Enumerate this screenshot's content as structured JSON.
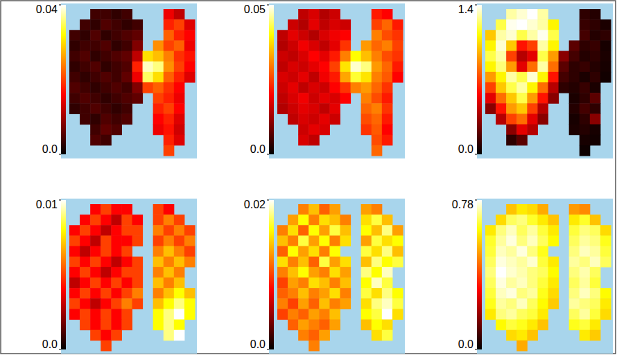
{
  "chart_data": [
    {
      "type": "heatmap",
      "tick_labels": false,
      "zlim": [
        0,
        0.04
      ],
      "zticks": [
        {
          "value": 0,
          "label": "0.0"
        },
        0.04
      ],
      "cells": [
        [
          null,
          null,
          0.004,
          0.004,
          0.003,
          0.004,
          null,
          null,
          null,
          0.015,
          0.012,
          null
        ],
        [
          null,
          0.004,
          0.003,
          0.005,
          0.004,
          0.003,
          0.004,
          null,
          null,
          0.018,
          0.02,
          0.014
        ],
        [
          0.004,
          0.003,
          0.005,
          0.003,
          0.004,
          0.005,
          0.006,
          null,
          null,
          0.022,
          0.018,
          0.016
        ],
        [
          0.003,
          0.004,
          0.004,
          0.005,
          0.003,
          0.004,
          0.008,
          null,
          0.025,
          0.02,
          0.022,
          0.015
        ],
        [
          0.004,
          0.005,
          0.003,
          0.004,
          0.005,
          0.006,
          0.012,
          0.03,
          0.028,
          0.024,
          0.019,
          0.017
        ],
        [
          0.003,
          0.004,
          0.005,
          0.003,
          0.004,
          0.005,
          0.018,
          0.038,
          0.036,
          0.025,
          0.02,
          0.016
        ],
        [
          0.004,
          0.003,
          0.004,
          0.005,
          0.004,
          0.006,
          0.015,
          0.035,
          0.03,
          0.022,
          0.018,
          0.014
        ],
        [
          0.005,
          0.004,
          0.003,
          0.004,
          0.005,
          0.004,
          0.008,
          0.02,
          0.022,
          0.019,
          0.016,
          null
        ],
        [
          0.004,
          0.005,
          0.004,
          0.003,
          0.004,
          0.005,
          0.006,
          null,
          0.02,
          0.018,
          0.015,
          null
        ],
        [
          0.003,
          0.004,
          0.005,
          0.004,
          0.003,
          0.004,
          null,
          null,
          0.018,
          0.02,
          0.016,
          null
        ],
        [
          null,
          0.004,
          0.003,
          0.005,
          0.004,
          0.005,
          null,
          null,
          0.016,
          0.018,
          0.014,
          null
        ],
        [
          null,
          null,
          0.004,
          0.006,
          0.005,
          null,
          null,
          null,
          0.015,
          0.017,
          0.013,
          null
        ],
        [
          null,
          null,
          0.005,
          0.004,
          null,
          null,
          null,
          null,
          null,
          0.018,
          0.014,
          null
        ],
        [
          null,
          null,
          null,
          null,
          null,
          null,
          null,
          null,
          null,
          0.02,
          null,
          null
        ]
      ]
    },
    {
      "type": "heatmap",
      "tick_labels": false,
      "zlim": [
        0,
        0.05
      ],
      "zticks": [
        {
          "value": 0,
          "label": "0.0"
        },
        0.05
      ],
      "cells": [
        [
          null,
          null,
          0.015,
          0.017,
          0.014,
          0.016,
          null,
          null,
          null,
          0.022,
          0.02,
          null
        ],
        [
          null,
          0.016,
          0.014,
          0.018,
          0.015,
          0.017,
          0.016,
          null,
          null,
          0.025,
          0.028,
          0.022
        ],
        [
          0.015,
          0.018,
          0.016,
          0.014,
          0.017,
          0.019,
          0.02,
          null,
          null,
          0.03,
          0.026,
          0.024
        ],
        [
          0.014,
          0.016,
          0.019,
          0.017,
          0.015,
          0.018,
          0.024,
          null,
          0.032,
          0.028,
          0.03,
          0.025
        ],
        [
          0.016,
          0.015,
          0.017,
          0.02,
          0.018,
          0.022,
          0.03,
          0.04,
          0.035,
          0.03,
          0.026,
          0.024
        ],
        [
          0.015,
          0.017,
          0.016,
          0.018,
          0.02,
          0.025,
          0.038,
          0.048,
          0.045,
          0.032,
          0.028,
          0.022
        ],
        [
          0.017,
          0.016,
          0.018,
          0.015,
          0.019,
          0.022,
          0.033,
          0.042,
          0.038,
          0.03,
          0.027,
          0.02
        ],
        [
          0.016,
          0.018,
          0.015,
          0.017,
          0.016,
          0.02,
          0.024,
          0.03,
          0.032,
          0.028,
          0.024,
          null
        ],
        [
          0.015,
          0.017,
          0.019,
          0.016,
          0.018,
          0.017,
          0.02,
          null,
          0.03,
          0.026,
          0.022,
          null
        ],
        [
          0.014,
          0.016,
          0.018,
          0.017,
          0.015,
          0.018,
          null,
          null,
          0.028,
          0.03,
          0.024,
          null
        ],
        [
          null,
          0.015,
          0.017,
          0.016,
          0.018,
          0.016,
          null,
          null,
          0.026,
          0.028,
          0.022,
          null
        ],
        [
          null,
          null,
          0.016,
          0.018,
          0.017,
          null,
          null,
          null,
          0.024,
          0.027,
          0.02,
          null
        ],
        [
          null,
          null,
          0.017,
          0.015,
          null,
          null,
          null,
          null,
          null,
          0.026,
          0.022,
          null
        ],
        [
          null,
          null,
          null,
          null,
          null,
          null,
          null,
          null,
          null,
          0.028,
          null,
          null
        ]
      ]
    },
    {
      "type": "heatmap",
      "tick_labels": false,
      "zlim": [
        0,
        1.4
      ],
      "zticks": [
        {
          "value": 0,
          "label": "0.0"
        },
        1.4
      ],
      "cells": [
        [
          null,
          null,
          1.3,
          1.35,
          1.4,
          1.3,
          null,
          null,
          null,
          0.1,
          0.08,
          null
        ],
        [
          null,
          1.2,
          1.38,
          1.4,
          1.35,
          1.3,
          1.1,
          null,
          null,
          0.12,
          0.1,
          0.06
        ],
        [
          1.0,
          1.3,
          1.35,
          1.2,
          1.3,
          1.38,
          1.2,
          null,
          null,
          0.15,
          0.08,
          0.1
        ],
        [
          1.1,
          1.35,
          1.0,
          0.6,
          0.7,
          1.3,
          1.1,
          null,
          0.2,
          0.1,
          0.12,
          0.05
        ],
        [
          1.2,
          1.3,
          0.7,
          0.4,
          0.5,
          1.2,
          0.9,
          0.3,
          0.15,
          0.08,
          0.1,
          0.06
        ],
        [
          1.1,
          1.25,
          0.9,
          0.5,
          0.8,
          1.3,
          0.8,
          0.2,
          0.1,
          0.12,
          0.08,
          0.05
        ],
        [
          0.9,
          1.1,
          1.3,
          1.2,
          1.35,
          1.1,
          0.6,
          0.15,
          0.1,
          0.06,
          0.1,
          0.04
        ],
        [
          0.7,
          1.0,
          1.2,
          1.3,
          1.1,
          0.8,
          0.4,
          0.1,
          0.08,
          0.12,
          0.06,
          null
        ],
        [
          0.5,
          0.8,
          1.0,
          1.2,
          0.9,
          0.6,
          0.3,
          null,
          0.06,
          0.1,
          0.2,
          null
        ],
        [
          0.3,
          0.6,
          0.9,
          1.0,
          0.7,
          0.4,
          null,
          null,
          0.08,
          0.15,
          0.1,
          null
        ],
        [
          null,
          0.4,
          0.7,
          0.8,
          0.5,
          0.3,
          null,
          null,
          0.05,
          0.1,
          0.3,
          null
        ],
        [
          null,
          null,
          0.3,
          0.5,
          0.4,
          null,
          null,
          null,
          0.06,
          0.08,
          0.05,
          null
        ],
        [
          null,
          null,
          0.1,
          0.2,
          null,
          null,
          null,
          null,
          null,
          0.05,
          0.04,
          null
        ],
        [
          null,
          null,
          null,
          null,
          null,
          null,
          null,
          null,
          null,
          0.03,
          null,
          null
        ]
      ]
    },
    {
      "type": "heatmap",
      "tick_labels": false,
      "zlim": [
        0,
        0.01
      ],
      "zticks": [
        {
          "value": 0,
          "label": "0.0"
        },
        0.01
      ],
      "cells": [
        [
          null,
          null,
          0.004,
          0.005,
          0.004,
          0.004,
          null,
          null,
          0.005,
          0.004,
          null,
          null
        ],
        [
          null,
          0.004,
          0.005,
          0.004,
          0.003,
          0.005,
          0.004,
          null,
          0.005,
          0.006,
          0.005,
          null
        ],
        [
          0.004,
          0.005,
          0.004,
          0.003,
          0.004,
          0.005,
          0.005,
          null,
          0.006,
          0.005,
          0.006,
          0.005
        ],
        [
          0.005,
          0.004,
          0.003,
          0.005,
          0.004,
          0.004,
          0.005,
          null,
          0.005,
          0.006,
          0.005,
          0.006
        ],
        [
          0.004,
          0.003,
          0.004,
          0.005,
          0.004,
          0.005,
          null,
          null,
          0.006,
          0.007,
          0.006,
          0.005
        ],
        [
          0.005,
          0.004,
          0.005,
          0.004,
          0.003,
          0.004,
          0.005,
          null,
          0.007,
          0.006,
          0.007,
          0.006
        ],
        [
          0.004,
          0.005,
          0.004,
          0.003,
          0.004,
          0.005,
          0.005,
          null,
          0.006,
          0.007,
          0.006,
          null
        ],
        [
          0.003,
          0.004,
          0.005,
          0.004,
          0.005,
          0.004,
          0.005,
          null,
          0.007,
          0.006,
          0.007,
          null
        ],
        [
          0.004,
          0.005,
          0.004,
          0.005,
          0.004,
          0.005,
          0.006,
          null,
          0.006,
          0.007,
          0.008,
          0.007
        ],
        [
          0.005,
          0.004,
          0.003,
          0.004,
          0.005,
          0.006,
          0.005,
          null,
          0.007,
          0.008,
          0.009,
          0.008
        ],
        [
          0.004,
          0.005,
          0.004,
          0.005,
          0.004,
          0.005,
          null,
          null,
          0.008,
          0.009,
          0.01,
          0.008
        ],
        [
          null,
          0.005,
          0.004,
          0.005,
          0.004,
          0.005,
          null,
          null,
          0.008,
          0.009,
          0.008,
          null
        ],
        [
          null,
          null,
          0.005,
          0.004,
          0.005,
          null,
          null,
          null,
          null,
          0.009,
          0.01,
          null
        ],
        [
          null,
          null,
          null,
          0.005,
          null,
          null,
          null,
          null,
          null,
          null,
          null,
          null
        ]
      ]
    },
    {
      "type": "heatmap",
      "tick_labels": false,
      "zlim": [
        0,
        0.02
      ],
      "zticks": [
        {
          "value": 0,
          "label": "0.0"
        },
        0.02
      ],
      "cells": [
        [
          null,
          null,
          0.012,
          0.014,
          0.011,
          0.013,
          null,
          null,
          0.013,
          0.012,
          null,
          null
        ],
        [
          null,
          0.013,
          0.016,
          0.012,
          0.015,
          0.014,
          0.012,
          null,
          0.015,
          0.017,
          0.014,
          null
        ],
        [
          0.012,
          0.015,
          0.011,
          0.016,
          0.013,
          0.017,
          0.014,
          null,
          0.016,
          0.014,
          0.018,
          0.013
        ],
        [
          0.014,
          0.012,
          0.017,
          0.013,
          0.016,
          0.012,
          0.015,
          null,
          0.013,
          0.017,
          0.015,
          0.016
        ],
        [
          0.011,
          0.016,
          0.013,
          0.015,
          0.012,
          0.016,
          null,
          null,
          0.017,
          0.015,
          0.018,
          0.014
        ],
        [
          0.015,
          0.012,
          0.014,
          0.011,
          0.017,
          0.013,
          0.015,
          null,
          0.014,
          0.018,
          0.016,
          0.017
        ],
        [
          0.012,
          0.014,
          0.016,
          0.013,
          0.012,
          0.015,
          0.013,
          null,
          0.018,
          0.016,
          0.019,
          null
        ],
        [
          0.01,
          0.013,
          0.012,
          0.015,
          0.014,
          0.012,
          0.014,
          null,
          0.016,
          0.019,
          0.017,
          null
        ],
        [
          0.011,
          0.012,
          0.014,
          0.012,
          0.013,
          0.015,
          0.012,
          null,
          0.017,
          0.015,
          0.018,
          0.016
        ],
        [
          0.012,
          0.01,
          0.013,
          0.011,
          0.014,
          0.012,
          0.013,
          null,
          0.015,
          0.018,
          0.019,
          0.017
        ],
        [
          0.01,
          0.012,
          0.011,
          0.013,
          0.012,
          0.014,
          null,
          null,
          0.016,
          0.017,
          0.02,
          0.015
        ],
        [
          null,
          0.011,
          0.013,
          0.012,
          0.011,
          0.013,
          null,
          null,
          0.014,
          0.016,
          0.015,
          null
        ],
        [
          null,
          null,
          0.012,
          0.011,
          0.013,
          null,
          null,
          null,
          null,
          0.015,
          0.017,
          null
        ],
        [
          null,
          null,
          null,
          0.012,
          null,
          null,
          null,
          null,
          null,
          null,
          null,
          null
        ]
      ]
    },
    {
      "type": "heatmap",
      "tick_labels": false,
      "zlim": [
        0,
        0.78
      ],
      "zticks": [
        {
          "value": 0,
          "label": "0.0"
        },
        0.78
      ],
      "cells": [
        [
          null,
          null,
          0.55,
          0.6,
          0.58,
          0.52,
          null,
          null,
          0.5,
          0.48,
          null,
          null
        ],
        [
          null,
          0.58,
          0.68,
          0.7,
          0.65,
          0.6,
          0.55,
          null,
          0.6,
          0.65,
          0.55,
          null
        ],
        [
          0.6,
          0.7,
          0.74,
          0.68,
          0.72,
          0.66,
          0.6,
          null,
          0.66,
          0.7,
          0.68,
          0.58
        ],
        [
          0.65,
          0.72,
          0.76,
          0.7,
          0.74,
          0.68,
          0.62,
          null,
          0.68,
          0.72,
          0.7,
          0.64
        ],
        [
          0.66,
          0.74,
          0.72,
          0.76,
          0.7,
          0.64,
          null,
          null,
          0.7,
          0.74,
          0.72,
          0.66
        ],
        [
          0.68,
          0.76,
          0.74,
          0.72,
          0.75,
          0.66,
          0.6,
          null,
          0.72,
          0.7,
          0.74,
          0.68
        ],
        [
          0.7,
          0.78,
          0.75,
          0.73,
          0.7,
          0.68,
          0.62,
          null,
          0.7,
          0.73,
          0.68,
          null
        ],
        [
          0.68,
          0.76,
          0.72,
          0.74,
          0.7,
          0.66,
          0.6,
          null,
          0.68,
          0.72,
          0.66,
          null
        ],
        [
          0.66,
          0.74,
          0.76,
          0.7,
          0.72,
          0.64,
          0.58,
          null,
          0.7,
          0.74,
          0.7,
          0.62
        ],
        [
          0.64,
          0.72,
          0.7,
          0.74,
          0.68,
          0.62,
          0.56,
          null,
          0.72,
          0.7,
          0.68,
          0.6
        ],
        [
          0.6,
          0.7,
          0.72,
          0.68,
          0.66,
          0.6,
          null,
          null,
          0.68,
          0.72,
          0.66,
          0.58
        ],
        [
          null,
          0.62,
          0.66,
          0.64,
          0.6,
          0.55,
          null,
          null,
          0.64,
          0.66,
          0.6,
          null
        ],
        [
          null,
          null,
          0.58,
          0.6,
          0.55,
          null,
          null,
          null,
          null,
          0.6,
          0.56,
          null
        ],
        [
          null,
          null,
          null,
          0.52,
          null,
          null,
          null,
          null,
          null,
          null,
          null,
          null
        ]
      ]
    }
  ]
}
